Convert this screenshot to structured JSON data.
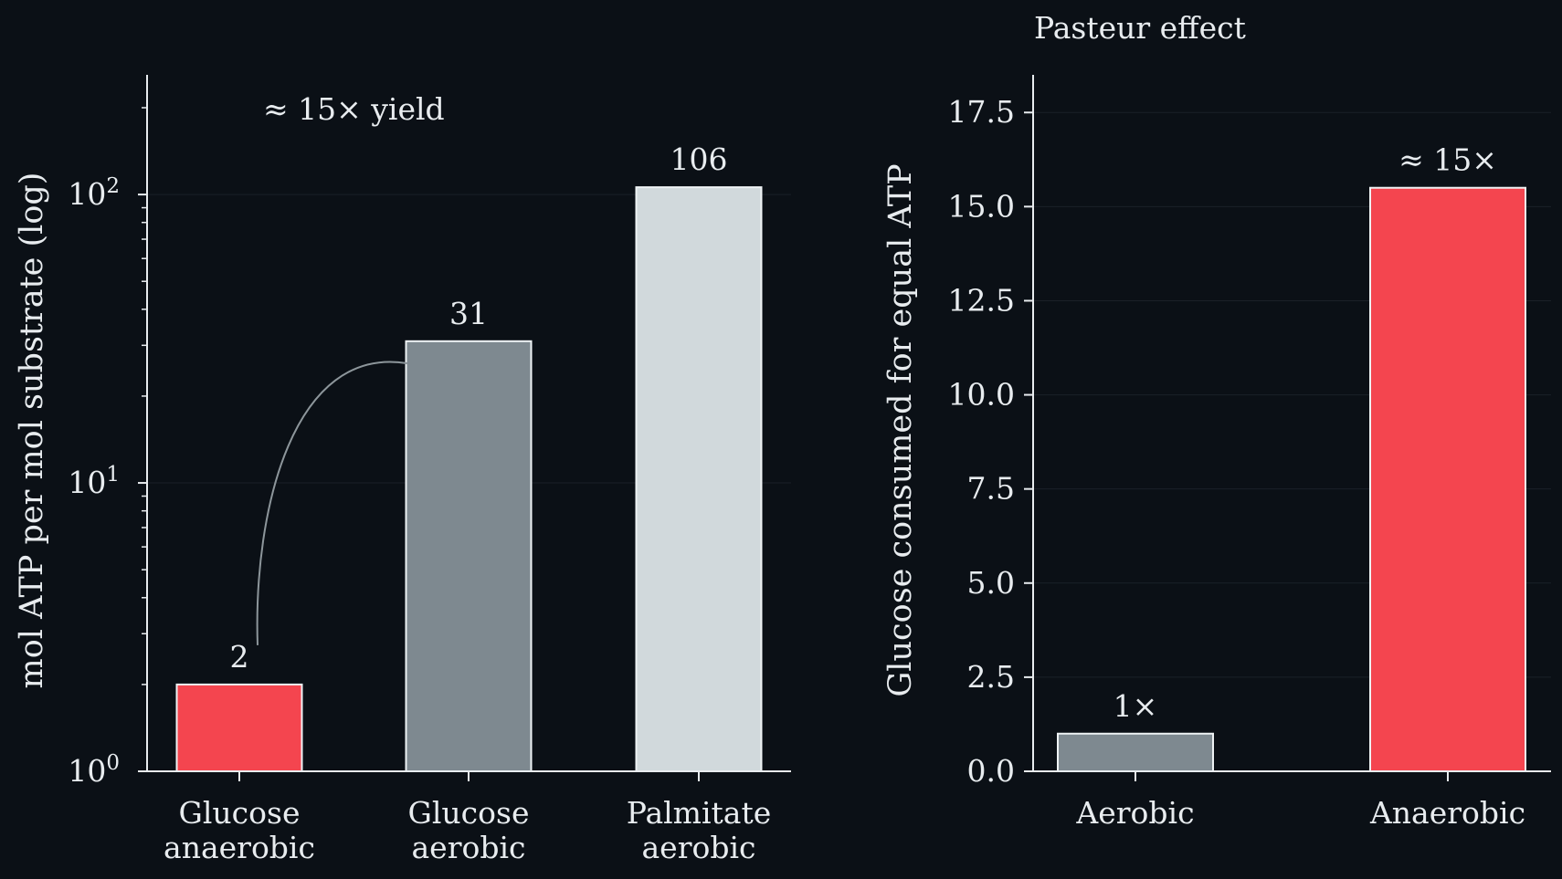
{
  "colors": {
    "background": "#0b1016",
    "axis": "#e8ecef",
    "text": "#e8ecef",
    "grid": "#1b2128",
    "red": "#f4454f",
    "gray": "#7e8990",
    "light": "#d1d9dc",
    "connector": "#8d969b"
  },
  "chart_data": [
    {
      "type": "bar",
      "title": "",
      "ylabel": "mol ATP per mol substrate (log)",
      "yscale": "log",
      "ylim": [
        1,
        260
      ],
      "yticks": [
        {
          "value": 1,
          "base": "10",
          "exp": "0"
        },
        {
          "value": 10,
          "base": "10",
          "exp": "1"
        },
        {
          "value": 100,
          "base": "10",
          "exp": "2"
        }
      ],
      "grid": true,
      "categories": [
        [
          "Glucose",
          "anaerobic"
        ],
        [
          "Glucose",
          "aerobic"
        ],
        [
          "Palmitate",
          "aerobic"
        ]
      ],
      "values": [
        2,
        31,
        106
      ],
      "value_labels": [
        "2",
        "31",
        "106"
      ],
      "bar_colors": [
        "red",
        "gray",
        "light"
      ],
      "annotation": {
        "text": "≈ 15× yield",
        "from_category": 0,
        "to_category": 1
      }
    },
    {
      "type": "bar",
      "title": "Pasteur effect",
      "ylabel": "Glucose consumed for equal ATP",
      "yscale": "linear",
      "ylim": [
        0,
        18.5
      ],
      "yticks": [
        {
          "value": 0,
          "label": "0.0"
        },
        {
          "value": 2.5,
          "label": "2.5"
        },
        {
          "value": 5,
          "label": "5.0"
        },
        {
          "value": 7.5,
          "label": "7.5"
        },
        {
          "value": 10,
          "label": "10.0"
        },
        {
          "value": 12.5,
          "label": "12.5"
        },
        {
          "value": 15,
          "label": "15.0"
        },
        {
          "value": 17.5,
          "label": "17.5"
        }
      ],
      "grid": true,
      "categories": [
        [
          "Aerobic"
        ],
        [
          "Anaerobic"
        ]
      ],
      "values": [
        1,
        15.5
      ],
      "value_labels": [
        "1×",
        "≈ 15×"
      ],
      "bar_colors": [
        "gray",
        "red"
      ]
    }
  ]
}
